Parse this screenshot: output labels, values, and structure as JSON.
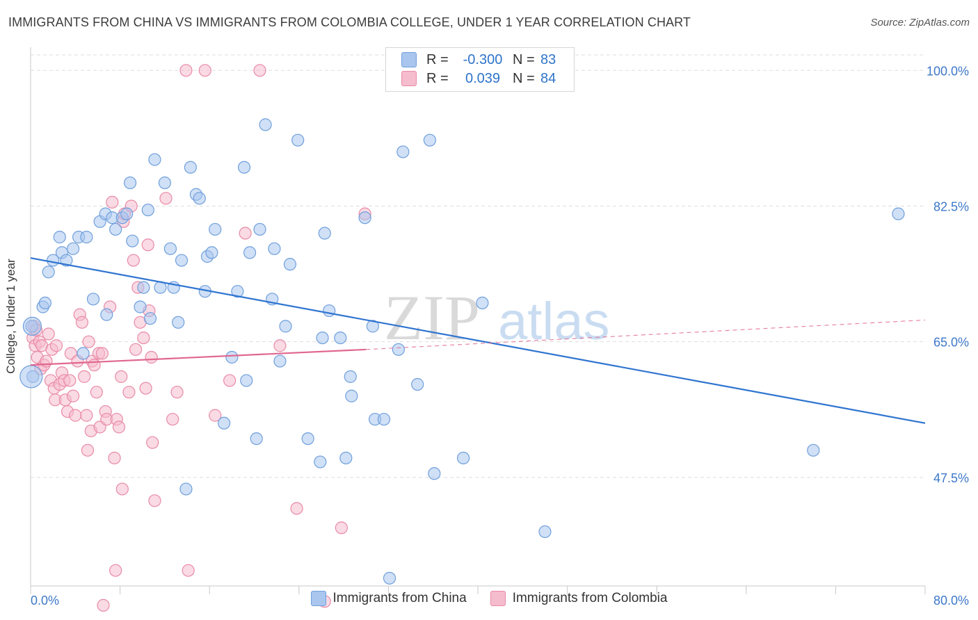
{
  "title": "IMMIGRANTS FROM CHINA VS IMMIGRANTS FROM COLOMBIA COLLEGE, UNDER 1 YEAR CORRELATION CHART",
  "source": "Source: ZipAtlas.com",
  "watermark": {
    "zip": "ZIP",
    "atlas": "atlas"
  },
  "stats_legend": [
    {
      "r_label": "R =",
      "r_value": "-0.300",
      "n_label": "N =",
      "n_value": "83"
    },
    {
      "r_label": "R =",
      "r_value": "0.039",
      "n_label": "N =",
      "n_value": "84"
    }
  ],
  "colors": {
    "china_fill": "#a9c6ee",
    "china_stroke": "#6f9fdc",
    "china_line": "#2e74d0",
    "colombia_fill": "#f5bccd",
    "colombia_stroke": "#e88aa6",
    "colombia_line": "#e0678f",
    "axis_text": "#3d78c8",
    "grid": "#dddddd"
  },
  "chart_data": {
    "type": "scatter",
    "title": "IMMIGRANTS FROM CHINA VS IMMIGRANTS FROM COLOMBIA COLLEGE, UNDER 1 YEAR CORRELATION CHART",
    "xlabel": "",
    "ylabel": "College, Under 1 year",
    "xlim": [
      0,
      80
    ],
    "ylim": [
      33.5,
      102
    ],
    "x_tick_labels": [
      "0.0%",
      "80.0%"
    ],
    "y_ticks": [
      47.5,
      65.0,
      82.5,
      100.0
    ],
    "y_tick_labels": [
      "47.5%",
      "65.0%",
      "82.5%",
      "100.0%"
    ],
    "grid": true,
    "legend_position": "bottom",
    "series": [
      {
        "name": "Immigrants from China",
        "trend": {
          "x": [
            0,
            80
          ],
          "y": [
            75.8,
            54.5
          ],
          "style": "solid"
        },
        "points": [
          [
            0.1,
            67.0
          ],
          [
            0.2,
            60.5
          ],
          [
            1.1,
            69.5
          ],
          [
            1.3,
            70.0
          ],
          [
            1.6,
            74.0
          ],
          [
            2.0,
            75.5
          ],
          [
            2.6,
            78.5
          ],
          [
            2.8,
            76.5
          ],
          [
            3.2,
            75.5
          ],
          [
            3.8,
            77.0
          ],
          [
            4.3,
            78.5
          ],
          [
            5.0,
            78.5
          ],
          [
            4.7,
            63.5
          ],
          [
            5.6,
            70.5
          ],
          [
            6.2,
            80.5
          ],
          [
            6.7,
            81.5
          ],
          [
            6.8,
            68.5
          ],
          [
            7.3,
            81.0
          ],
          [
            7.6,
            79.5
          ],
          [
            8.2,
            81.0
          ],
          [
            8.6,
            81.5
          ],
          [
            8.9,
            85.5
          ],
          [
            9.1,
            78.0
          ],
          [
            9.8,
            69.5
          ],
          [
            10.1,
            72.0
          ],
          [
            10.5,
            82.0
          ],
          [
            10.7,
            68.0
          ],
          [
            11.1,
            88.5
          ],
          [
            11.6,
            72.0
          ],
          [
            12.0,
            85.5
          ],
          [
            12.5,
            77.0
          ],
          [
            12.8,
            72.0
          ],
          [
            13.2,
            67.5
          ],
          [
            13.5,
            75.5
          ],
          [
            13.9,
            46.0
          ],
          [
            14.3,
            87.5
          ],
          [
            14.8,
            84.0
          ],
          [
            15.1,
            83.5
          ],
          [
            15.6,
            71.5
          ],
          [
            15.8,
            76.0
          ],
          [
            16.2,
            76.5
          ],
          [
            16.5,
            79.5
          ],
          [
            17.3,
            54.5
          ],
          [
            18.0,
            63.0
          ],
          [
            18.5,
            71.5
          ],
          [
            19.1,
            87.5
          ],
          [
            19.3,
            60.0
          ],
          [
            19.6,
            76.5
          ],
          [
            20.2,
            52.5
          ],
          [
            20.5,
            79.5
          ],
          [
            21.0,
            93.0
          ],
          [
            21.6,
            70.5
          ],
          [
            21.8,
            77.0
          ],
          [
            22.3,
            62.5
          ],
          [
            22.8,
            67.0
          ],
          [
            23.2,
            75.0
          ],
          [
            23.9,
            91.0
          ],
          [
            24.8,
            52.5
          ],
          [
            25.9,
            49.5
          ],
          [
            26.1,
            65.5
          ],
          [
            26.3,
            79.0
          ],
          [
            26.7,
            69.0
          ],
          [
            27.7,
            65.5
          ],
          [
            28.2,
            50.0
          ],
          [
            28.6,
            60.5
          ],
          [
            28.7,
            58.0
          ],
          [
            29.9,
            81.0
          ],
          [
            30.6,
            67.0
          ],
          [
            30.8,
            55.0
          ],
          [
            31.6,
            55.0
          ],
          [
            32.1,
            34.5
          ],
          [
            32.9,
            64.0
          ],
          [
            33.3,
            89.5
          ],
          [
            34.6,
            59.5
          ],
          [
            35.7,
            91.0
          ],
          [
            36.1,
            48.0
          ],
          [
            38.7,
            50.0
          ],
          [
            40.4,
            70.0
          ],
          [
            46.0,
            40.5
          ],
          [
            70.0,
            51.0
          ],
          [
            77.6,
            81.5
          ]
        ]
      },
      {
        "name": "Immigrants from Colombia",
        "trend": {
          "x": [
            0,
            30
          ],
          "y": [
            62.0,
            64.0
          ],
          "style": "solid"
        },
        "trend_extension": {
          "x": [
            30,
            80
          ],
          "y": [
            64.0,
            67.8
          ],
          "style": "dashed"
        },
        "points": [
          [
            0.2,
            65.5
          ],
          [
            0.3,
            67.0
          ],
          [
            0.4,
            64.5
          ],
          [
            0.5,
            66.5
          ],
          [
            0.6,
            63.0
          ],
          [
            0.8,
            65.0
          ],
          [
            0.9,
            61.5
          ],
          [
            1.0,
            64.5
          ],
          [
            1.2,
            62.0
          ],
          [
            1.4,
            62.5
          ],
          [
            1.6,
            66.0
          ],
          [
            1.8,
            60.0
          ],
          [
            1.9,
            64.0
          ],
          [
            2.1,
            59.0
          ],
          [
            2.2,
            57.5
          ],
          [
            2.3,
            64.5
          ],
          [
            2.6,
            59.5
          ],
          [
            2.8,
            61.0
          ],
          [
            3.0,
            60.0
          ],
          [
            3.1,
            57.5
          ],
          [
            3.3,
            56.0
          ],
          [
            3.5,
            60.0
          ],
          [
            3.6,
            63.5
          ],
          [
            3.8,
            58.0
          ],
          [
            4.0,
            55.5
          ],
          [
            4.2,
            62.5
          ],
          [
            4.4,
            68.5
          ],
          [
            4.6,
            67.5
          ],
          [
            4.8,
            60.5
          ],
          [
            5.0,
            55.5
          ],
          [
            5.1,
            51.0
          ],
          [
            5.2,
            65.0
          ],
          [
            5.4,
            53.5
          ],
          [
            5.5,
            62.5
          ],
          [
            5.7,
            62.0
          ],
          [
            5.9,
            58.5
          ],
          [
            6.1,
            63.5
          ],
          [
            6.2,
            54.0
          ],
          [
            6.4,
            63.5
          ],
          [
            6.5,
            31.0
          ],
          [
            6.7,
            56.0
          ],
          [
            6.8,
            55.0
          ],
          [
            7.1,
            69.5
          ],
          [
            7.3,
            83.0
          ],
          [
            7.5,
            50.0
          ],
          [
            7.6,
            35.5
          ],
          [
            7.7,
            55.0
          ],
          [
            7.9,
            54.0
          ],
          [
            8.1,
            60.5
          ],
          [
            8.2,
            46.0
          ],
          [
            8.3,
            80.5
          ],
          [
            8.4,
            81.5
          ],
          [
            8.8,
            58.5
          ],
          [
            9.0,
            82.5
          ],
          [
            9.2,
            75.5
          ],
          [
            9.4,
            64.0
          ],
          [
            9.6,
            72.0
          ],
          [
            9.8,
            67.5
          ],
          [
            10.1,
            65.5
          ],
          [
            10.3,
            59.0
          ],
          [
            10.5,
            77.5
          ],
          [
            10.6,
            69.0
          ],
          [
            10.8,
            63.0
          ],
          [
            10.9,
            52.0
          ],
          [
            11.1,
            44.5
          ],
          [
            12.1,
            83.5
          ],
          [
            12.7,
            55.0
          ],
          [
            13.1,
            58.5
          ],
          [
            13.9,
            100.0
          ],
          [
            14.1,
            35.5
          ],
          [
            15.6,
            100.0
          ],
          [
            16.5,
            55.5
          ],
          [
            17.8,
            60.0
          ],
          [
            19.2,
            79.0
          ],
          [
            20.5,
            100.0
          ],
          [
            22.3,
            64.5
          ],
          [
            23.8,
            43.5
          ],
          [
            26.3,
            31.5
          ],
          [
            27.8,
            41.0
          ],
          [
            29.9,
            81.5
          ]
        ]
      }
    ]
  }
}
